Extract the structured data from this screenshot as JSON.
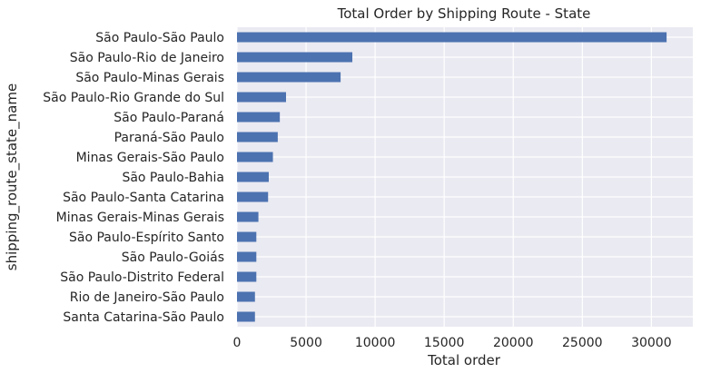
{
  "chart_data": {
    "type": "bar",
    "orientation": "horizontal",
    "title": "Total Order by Shipping Route - State",
    "xlabel": "Total order",
    "ylabel": "shipping_route_state_name",
    "categories": [
      "São Paulo-São Paulo",
      "São Paulo-Rio de Janeiro",
      "São Paulo-Minas Gerais",
      "São Paulo-Rio Grande do Sul",
      "São Paulo-Paraná",
      "Paraná-São Paulo",
      "Minas Gerais-São Paulo",
      "São Paulo-Bahia",
      "São Paulo-Santa Catarina",
      "Minas Gerais-Minas Gerais",
      "São Paulo-Espírito Santo",
      "São Paulo-Goiás",
      "São Paulo-Distrito Federal",
      "Rio de Janeiro-São Paulo",
      "Santa Catarina-São Paulo"
    ],
    "values": [
      31100,
      8350,
      7500,
      3550,
      3100,
      2950,
      2600,
      2300,
      2250,
      1550,
      1400,
      1400,
      1400,
      1300,
      1300
    ],
    "xlim": [
      0,
      33000
    ],
    "xticks": [
      "0",
      "5000",
      "10000",
      "15000",
      "20000",
      "25000",
      "30000"
    ],
    "xtick_values": [
      0,
      5000,
      10000,
      15000,
      20000,
      25000,
      30000
    ],
    "grid": true,
    "legend": "none",
    "colors": {
      "bar": "#4c72b0",
      "background": "#eaeaf2",
      "grid": "#ffffff",
      "text": "#262626"
    }
  }
}
